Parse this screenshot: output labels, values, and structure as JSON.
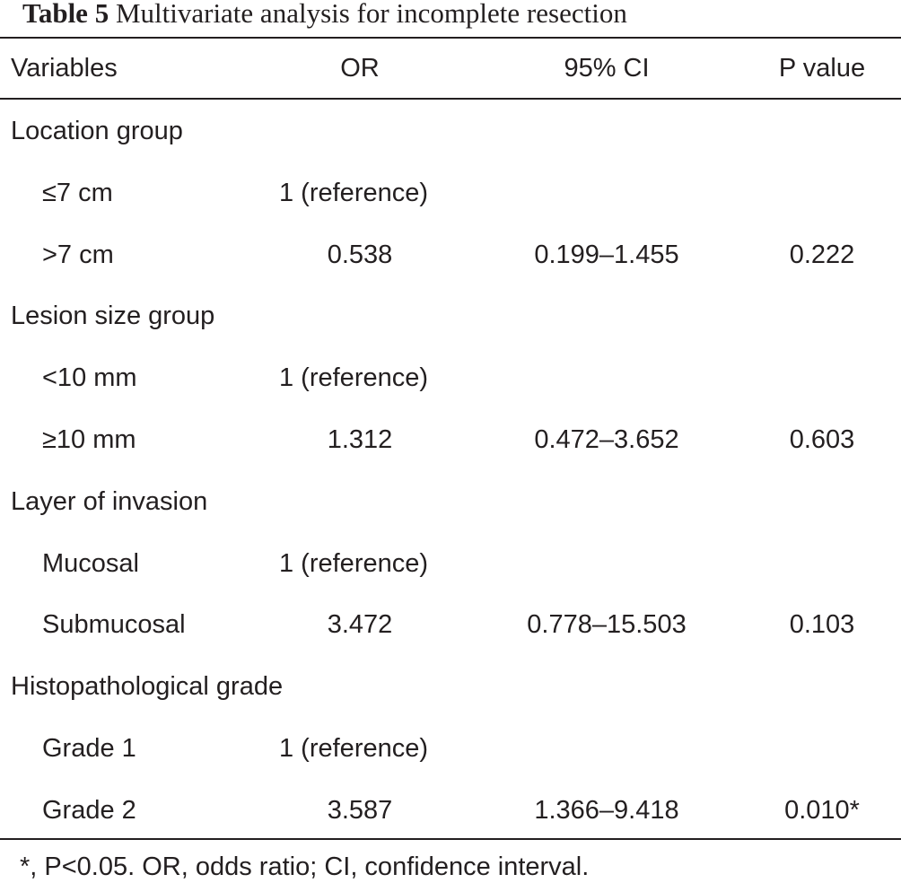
{
  "table": {
    "caption_label": "Table 5",
    "caption_text": "Multivariate analysis for incomplete resection",
    "headers": [
      "Variables",
      "OR",
      "95% CI",
      "P value"
    ],
    "groups": [
      {
        "name": "Location group",
        "rows": [
          {
            "label": "≤7 cm",
            "or": "1 (reference)",
            "ci": "",
            "p": ""
          },
          {
            "label": ">7 cm",
            "or": "0.538",
            "ci": "0.199–1.455",
            "p": "0.222"
          }
        ]
      },
      {
        "name": "Lesion size group",
        "rows": [
          {
            "label": "<10 mm",
            "or": "1 (reference)",
            "ci": "",
            "p": ""
          },
          {
            "label": "≥10 mm",
            "or": "1.312",
            "ci": "0.472–3.652",
            "p": "0.603"
          }
        ]
      },
      {
        "name": "Layer of invasion",
        "rows": [
          {
            "label": "Mucosal",
            "or": "1 (reference)",
            "ci": "",
            "p": ""
          },
          {
            "label": "Submucosal",
            "or": "3.472",
            "ci": "0.778–15.503",
            "p": "0.103"
          }
        ]
      },
      {
        "name": "Histopathological grade",
        "rows": [
          {
            "label": "Grade 1",
            "or": "1 (reference)",
            "ci": "",
            "p": ""
          },
          {
            "label": "Grade 2",
            "or": "3.587",
            "ci": "1.366–9.418",
            "p": "0.010*"
          }
        ]
      }
    ],
    "footnote": "*, P<0.05. OR, odds ratio; CI, confidence interval."
  }
}
